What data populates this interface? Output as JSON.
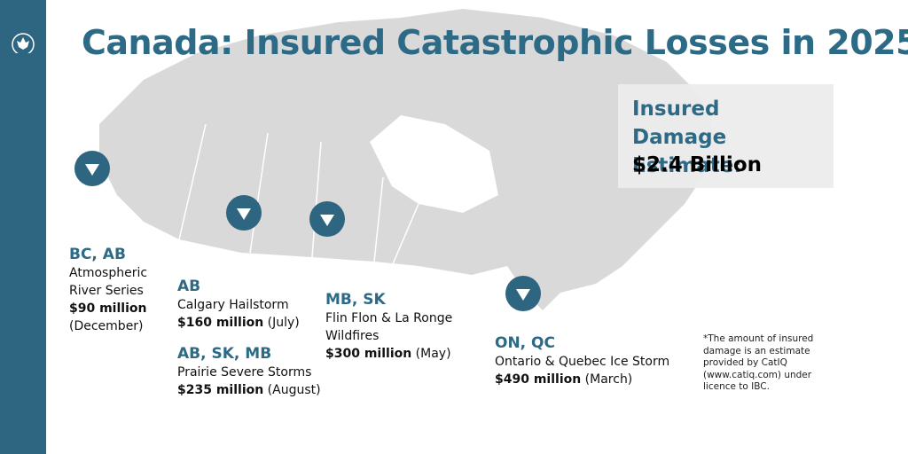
{
  "header": {
    "title": "Canada: Insured Catastrophic Losses in 2025"
  },
  "estimate": {
    "label": "Insured Damage Estimate:",
    "amount": "$2.4 Billion"
  },
  "events": [
    {
      "region": "BC, AB",
      "name": "Atmospheric River Series",
      "amount": "$90 million",
      "period": "(December)"
    },
    {
      "region": "AB",
      "name": "Calgary Hailstorm",
      "amount": "$160 million",
      "period": "(July)"
    },
    {
      "region": "AB, SK, MB",
      "name": "Prairie Severe Storms",
      "amount": "$235 million",
      "period": "(August)"
    },
    {
      "region": "MB, SK",
      "name": "Flin Flon & La Ronge Wildfires",
      "amount": "$300 million",
      "period": "(May)"
    },
    {
      "region": "ON, QC",
      "name": "Ontario & Quebec Ice Storm",
      "amount": "$490 million",
      "period": "(March)"
    }
  ],
  "footnote": "*The amount of insured damage is an estimate provided by CatIQ (www.catiq.com) under licence to IBC."
}
